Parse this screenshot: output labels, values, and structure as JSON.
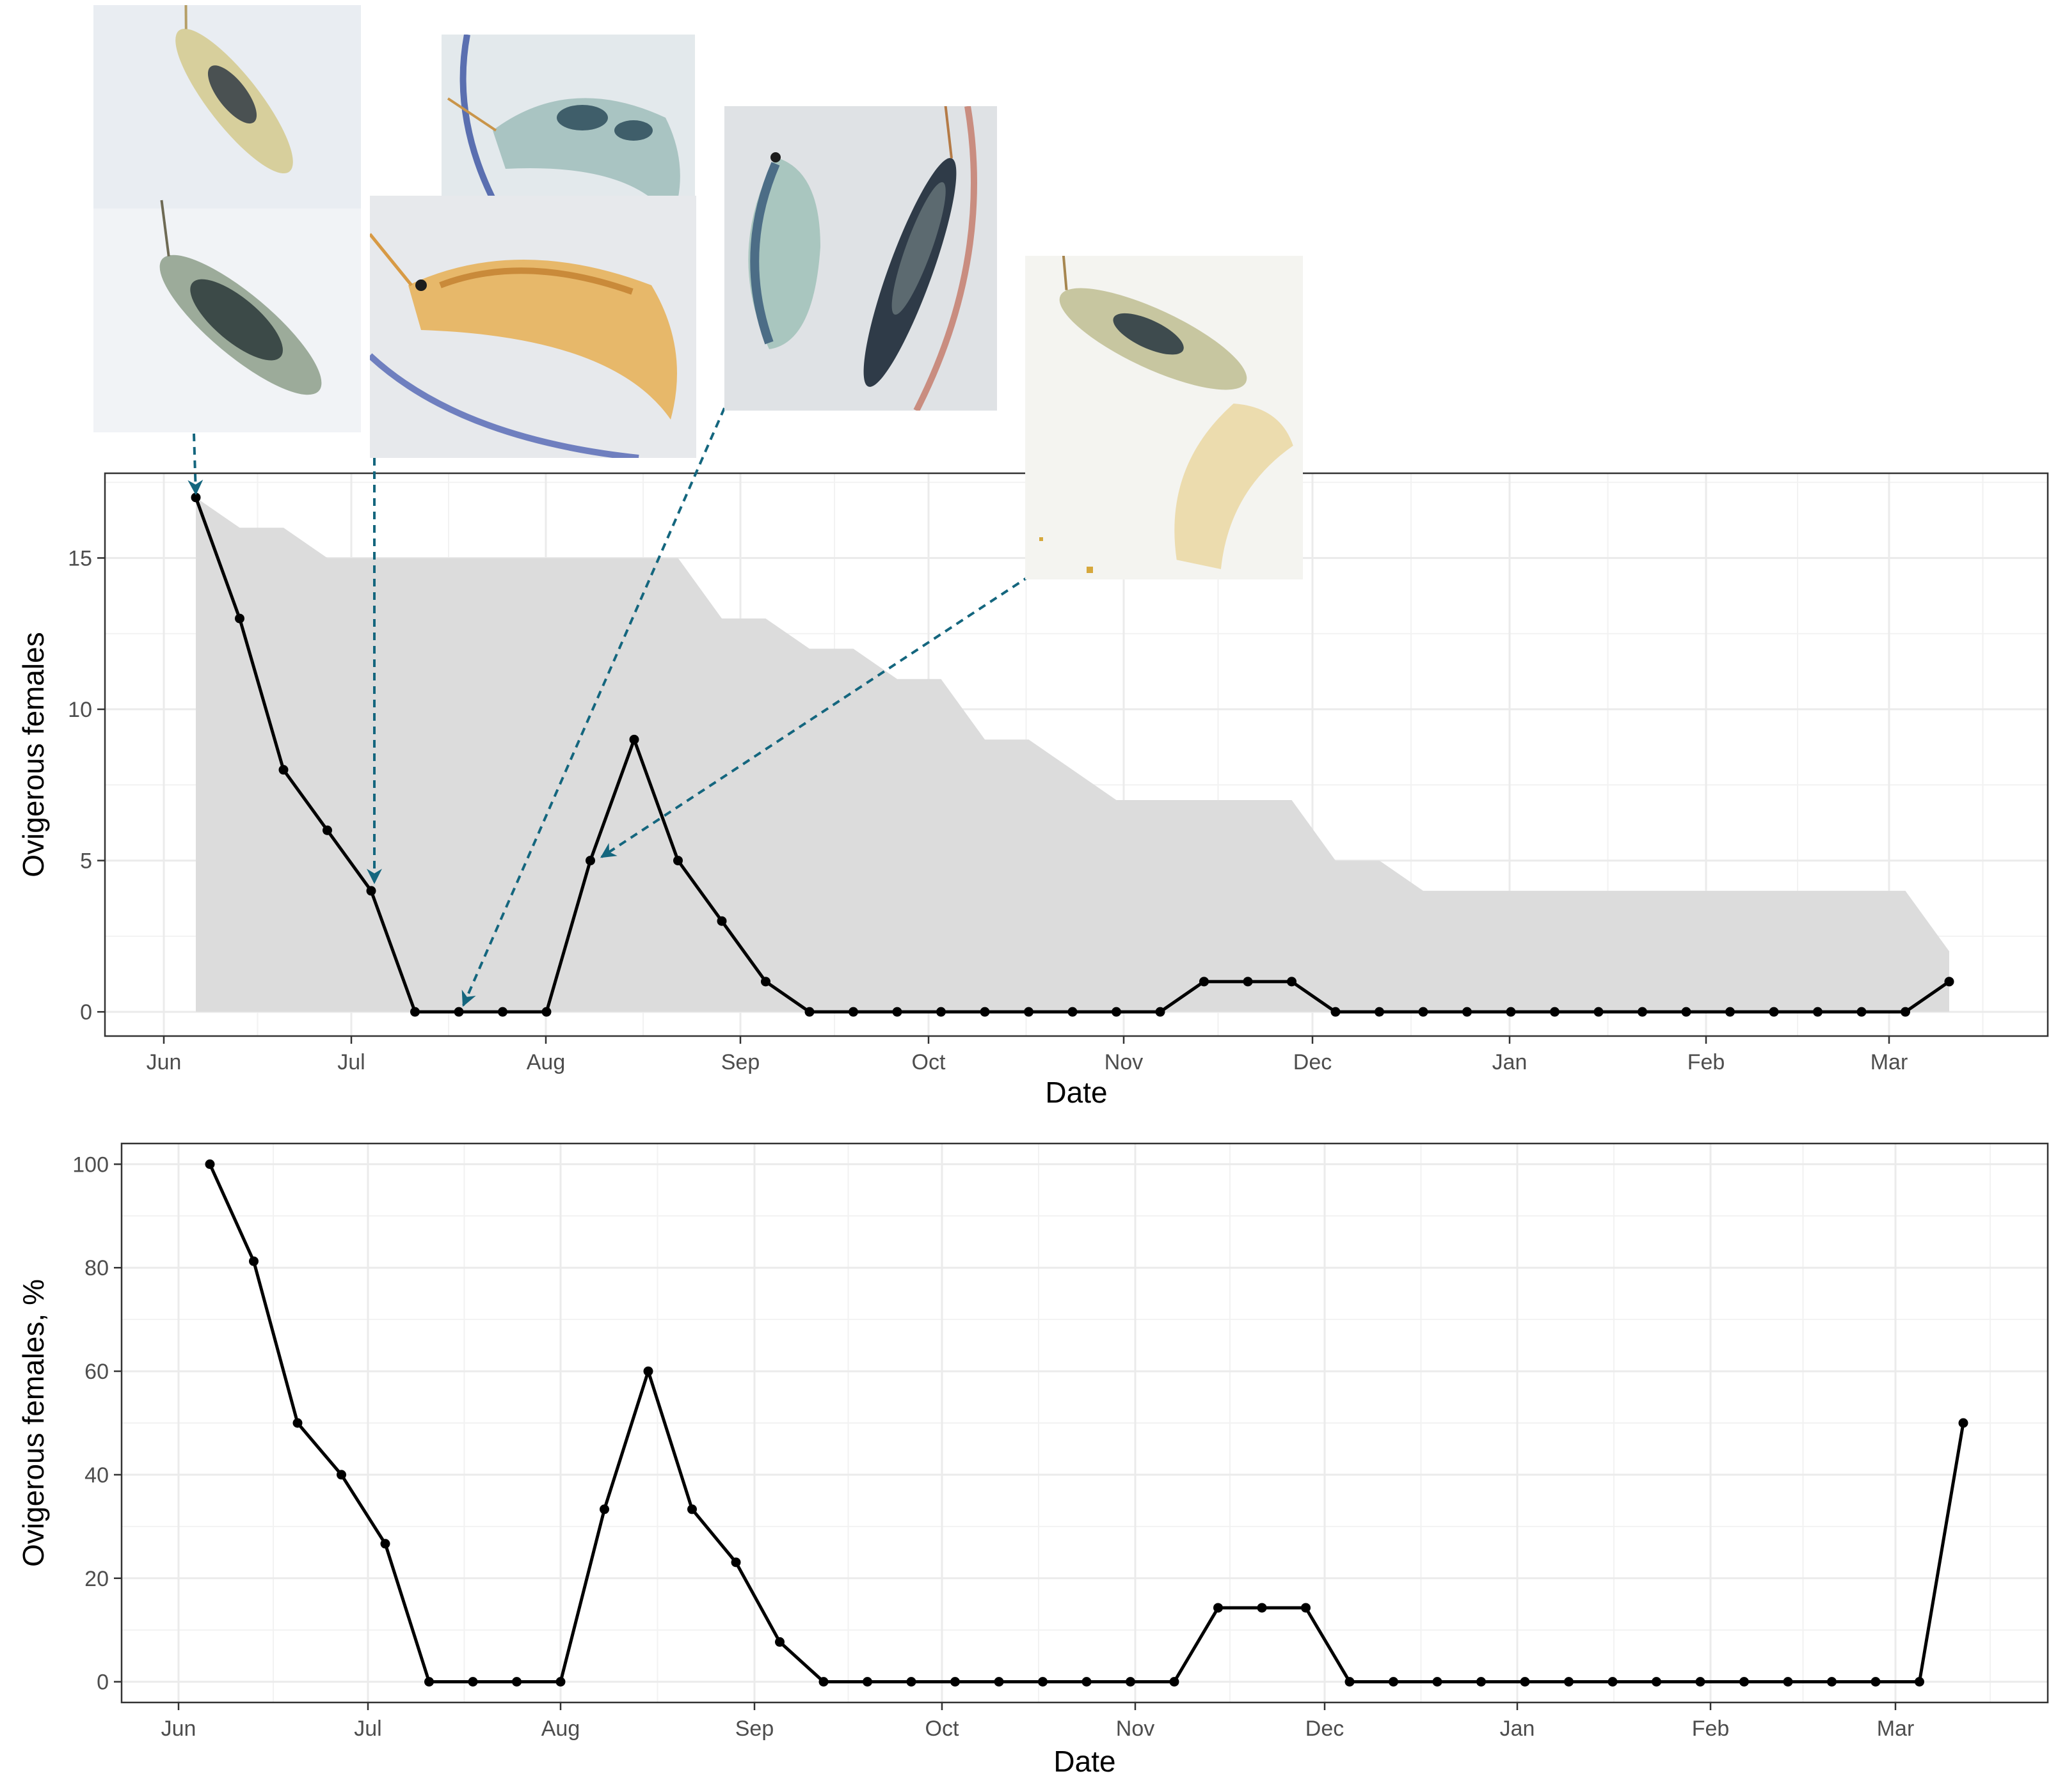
{
  "chart_data": [
    {
      "type": "line",
      "xlabel": "Date",
      "ylabel": "Ovigerous females",
      "x_tick_labels": [
        "Jun",
        "Jul",
        "Aug",
        "Sep",
        "Oct",
        "Nov",
        "Dec",
        "Jan",
        "Feb",
        "Mar"
      ],
      "y_ticks": [
        0,
        5,
        10,
        15
      ],
      "ylim": [
        -0.8,
        17.8
      ],
      "grid": true,
      "series": [
        {
          "type": "line",
          "color": "#000000",
          "values": [
            17,
            13,
            8,
            6,
            4,
            0,
            0,
            0,
            0,
            5,
            9,
            5,
            3,
            1,
            0,
            0,
            0,
            0,
            0,
            0,
            0,
            0,
            0,
            1,
            1,
            1,
            0,
            0,
            0,
            0,
            0,
            0,
            0,
            0,
            0,
            0,
            0,
            0,
            0,
            0,
            1
          ]
        },
        {
          "type": "area",
          "color": "#dcdcdc",
          "values": [
            17,
            16,
            16,
            15,
            15,
            15,
            15,
            15,
            15,
            15,
            15,
            15,
            13,
            13,
            12,
            12,
            11,
            11,
            9,
            9,
            8,
            7,
            7,
            7,
            7,
            7,
            5,
            5,
            4,
            4,
            4,
            4,
            4,
            4,
            4,
            4,
            4,
            4,
            4,
            4,
            2
          ]
        }
      ],
      "annotations": [
        {
          "photo": "amphipod-pair-june",
          "points_to": 0
        },
        {
          "photo": "amphipod-july",
          "points_to": 4
        },
        {
          "photo": "amphipod-pair-july-late",
          "points_to": 6
        },
        {
          "photo": "amphipod-pair-august",
          "points_to": 9
        }
      ]
    },
    {
      "type": "line",
      "xlabel": "Date",
      "ylabel": "Ovigerous females, %",
      "x_tick_labels": [
        "Jun",
        "Jul",
        "Aug",
        "Sep",
        "Oct",
        "Nov",
        "Dec",
        "Jan",
        "Feb",
        "Mar"
      ],
      "y_ticks": [
        0,
        20,
        40,
        60,
        80,
        100
      ],
      "ylim": [
        -4,
        104
      ],
      "grid": true,
      "series": [
        {
          "type": "line",
          "color": "#000000",
          "values": [
            100,
            81.25,
            50,
            40,
            26.67,
            0,
            0,
            0,
            0,
            33.33,
            60,
            33.33,
            23.08,
            7.69,
            0,
            0,
            0,
            0,
            0,
            0,
            0,
            0,
            0,
            14.29,
            14.29,
            14.29,
            0,
            0,
            0,
            0,
            0,
            0,
            0,
            0,
            0,
            0,
            0,
            0,
            0,
            0,
            50
          ]
        }
      ]
    }
  ],
  "arrow_color": "#14667e"
}
